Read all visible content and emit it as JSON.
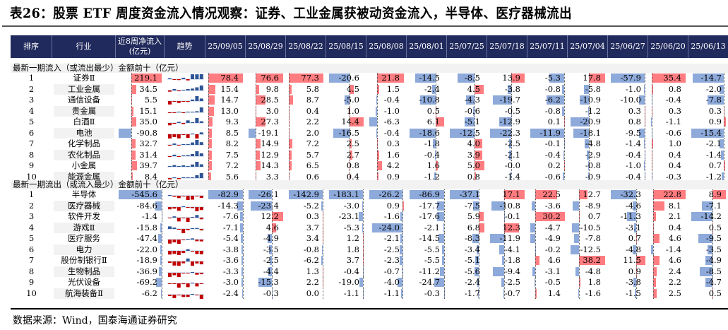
{
  "title": "表26：股票 ETF 周度资金流入情况观察：证券、工业金属获被动资金流入，半导体、医疗器械流出",
  "headers": {
    "rank": "排序",
    "industry": "行业",
    "net8": "近8周净流入(亿元)",
    "trend": "趋势"
  },
  "dates": [
    "25/09/05",
    "25/08/29",
    "25/08/22",
    "25/08/15",
    "25/08/08",
    "25/08/01",
    "25/07/25",
    "25/07/18",
    "25/07/11",
    "25/07/04",
    "25/06/27",
    "25/06/20",
    "25/06/13"
  ],
  "colors": {
    "header": "#212a5c",
    "pos_bar": "#ff7c80",
    "neg_bar": "#8eaadb",
    "spark_pos": "#2f5597",
    "spark_neg": "#c00000"
  },
  "sections": [
    {
      "label": "最新一期流入（或流出最少）金额前十（亿元）",
      "rows": [
        {
          "rank": "1",
          "industry": "证券Ⅱ",
          "net8": 219.1,
          "weekly": [
            78.4,
            76.6,
            77.3,
            -20.6,
            21.8,
            -14.5,
            -8.5,
            13.9,
            -5.3,
            17.8,
            -57.9,
            35.4,
            -14.7
          ]
        },
        {
          "rank": "2",
          "industry": "工业金属",
          "net8": 34.5,
          "weekly": [
            15.4,
            9.8,
            5.8,
            4.5,
            1.5,
            -2.4,
            4.5,
            -3.8,
            -0.8,
            -5.8,
            -1.0,
            0.8,
            -2.0
          ]
        },
        {
          "rank": "3",
          "industry": "通信设备",
          "net8": 5.5,
          "weekly": [
            14.7,
            28.5,
            8.7,
            -5.0,
            -0.4,
            -10.8,
            -4.3,
            -19.7,
            -6.2,
            -10.9,
            -10.0,
            -0.4,
            -7.8
          ]
        },
        {
          "rank": "4",
          "industry": "贵金属",
          "net8": 15.1,
          "weekly": [
            13.0,
            3.0,
            0.4,
            1.0,
            -1.0,
            0.5,
            -0.6,
            -0.5,
            -0.8,
            -1.2,
            0.3,
            0.3,
            0.3
          ]
        },
        {
          "rank": "5",
          "industry": "白酒Ⅱ",
          "net8": 35.0,
          "weekly": [
            9.3,
            27.3,
            2.2,
            14.4,
            -6.3,
            6.1,
            -5.1,
            -12.9,
            0.1,
            -20.9,
            0.8,
            -1.1,
            0.9
          ]
        },
        {
          "rank": "6",
          "industry": "电池",
          "net8": -90.8,
          "weekly": [
            8.5,
            -19.1,
            2.0,
            -16.5,
            -0.4,
            -18.6,
            -12.5,
            -22.3,
            -11.9,
            -18.1,
            -9.5,
            -0.6,
            -15.4
          ]
        },
        {
          "rank": "7",
          "industry": "化学制品",
          "net8": 32.7,
          "weekly": [
            8.2,
            14.9,
            7.2,
            2.5,
            0.3,
            -1.8,
            4.0,
            -2.5,
            -0.1,
            -4.8,
            -1.4,
            1.0,
            -2.1
          ]
        },
        {
          "rank": "8",
          "industry": "农化制品",
          "net8": 31.4,
          "weekly": [
            7.5,
            12.9,
            5.7,
            2.7,
            1.6,
            -0.4,
            3.9,
            -2.1,
            -0.4,
            -2.9,
            -0.4,
            0.4,
            -1.4
          ]
        },
        {
          "rank": "9",
          "industry": "小金属",
          "net8": 39.7,
          "weekly": [
            7.2,
            14.3,
            6.5,
            0.8,
            4.2,
            1.6,
            5.0,
            -0.0,
            0.2,
            -0.8,
            -1.0,
            0.4,
            0.7
          ]
        },
        {
          "rank": "10",
          "industry": "能源金属",
          "net8": 8.4,
          "weekly": [
            5.6,
            3.3,
            0.6,
            0.4,
            0.9,
            -1.2,
            0.8,
            -1.4,
            -0.6,
            -0.9,
            -0.4,
            -0.3,
            -1.2
          ]
        }
      ]
    },
    {
      "label": "最新一期流出（或流入最少）金额前十（亿元）",
      "rows": [
        {
          "rank": "1",
          "industry": "半导体",
          "net8": -545.6,
          "weekly": [
            -82.9,
            -26.1,
            -142.9,
            -183.1,
            -26.2,
            -86.9,
            -37.1,
            17.1,
            22.5,
            12.7,
            -32.3,
            22.8,
            8.9
          ]
        },
        {
          "rank": "2",
          "industry": "医疗器械",
          "net8": -84.6,
          "weekly": [
            -14.3,
            -23.4,
            -5.2,
            -3.0,
            0.9,
            -17.7,
            -7.5,
            -10.8,
            -3.6,
            -8.9,
            -4.6,
            8.1,
            -7.1
          ]
        },
        {
          "rank": "3",
          "industry": "软件开发",
          "net8": -1.4,
          "weekly": [
            -7.6,
            12.2,
            0.3,
            -23.1,
            -1.6,
            -17.6,
            5.9,
            -0.1,
            30.2,
            0.7,
            -11.3,
            2.1,
            -14.2
          ]
        },
        {
          "rank": "4",
          "industry": "游戏Ⅱ",
          "net8": -15.8,
          "weekly": [
            -7.1,
            4.6,
            3.7,
            -5.3,
            -24.0,
            -2.1,
            6.8,
            12.3,
            -4.7,
            -10.5,
            -3.1,
            0.4,
            0.5
          ]
        },
        {
          "rank": "5",
          "industry": "医疗服务",
          "net8": -47.4,
          "weekly": [
            -5.4,
            -4.9,
            3.4,
            1.2,
            -2.1,
            -14.5,
            -8.3,
            -11.9,
            -4.9,
            -7.8,
            0.7,
            4.6,
            -9.5
          ]
        },
        {
          "rank": "6",
          "industry": "电力",
          "net8": -22.0,
          "weekly": [
            -3.8,
            -3.5,
            -0.8,
            1.8,
            -2.5,
            -5.5,
            -3.4,
            -4.1,
            -0.2,
            -12.5,
            -4.8,
            -1.4,
            -3.5
          ]
        },
        {
          "rank": "7",
          "industry": "股份制银行Ⅱ",
          "net8": -18.9,
          "weekly": [
            -3.6,
            -2.5,
            -6.2,
            3.7,
            -2.3,
            -5.5,
            -5.1,
            -1.8,
            4.6,
            38.2,
            11.5,
            4.6,
            -4.9
          ]
        },
        {
          "rank": "8",
          "industry": "生物制品",
          "net8": -36.9,
          "weekly": [
            -3.3,
            -4.4,
            1.3,
            -0.4,
            -0.7,
            -11.2,
            -5.6,
            -9.4,
            -3.1,
            -4.8,
            0.9,
            2.4,
            -8.5
          ]
        },
        {
          "rank": "9",
          "industry": "光伏设备",
          "net8": -69.2,
          "weekly": [
            -3.0,
            -15.3,
            2.2,
            -19.0,
            -4.0,
            -24.7,
            -2.4,
            -2.5,
            -0.5,
            1.8,
            -3.8,
            2.2,
            -4.7
          ]
        },
        {
          "rank": "10",
          "industry": "航海装备Ⅱ",
          "net8": -6.2,
          "weekly": [
            -2.4,
            -0.3,
            0.0,
            -1.1,
            -1.1,
            -0.3,
            -1.7,
            -0.7,
            1.4,
            -1.6,
            -1.5,
            2.5,
            0.5
          ]
        }
      ]
    }
  ],
  "source": "数据来源：Wind，国泰海通证券研究"
}
